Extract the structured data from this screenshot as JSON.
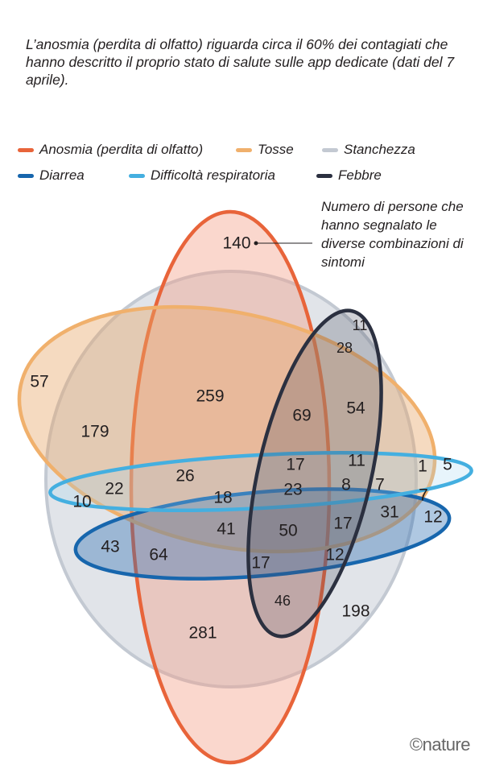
{
  "intro": "L’anosmia (perdita di olfatto) riguarda circa il 60% dei contagiati che hanno descritto il proprio stato di salute sulle app dedicate (dati del 7 aprile).",
  "legend": [
    {
      "label": "Anosmia (perdita di olfatto)",
      "color": "#e8643a"
    },
    {
      "label": "Tosse",
      "color": "#f0b06c"
    },
    {
      "label": "Stanchezza",
      "color": "#c3c9d2"
    },
    {
      "label": "Diarrea",
      "color": "#1766ad"
    },
    {
      "label": "Difficoltà respiratoria",
      "color": "#44afe0"
    },
    {
      "label": "Febbre",
      "color": "#2b3040"
    }
  ],
  "annotation": "Numero di persone che hanno segnalato le diverse combinazioni di sintomi",
  "numbers": [
    "140",
    "11",
    "28",
    "57",
    "259",
    "69",
    "54",
    "179",
    "17",
    "11",
    "1",
    "5",
    "26",
    "22",
    "18",
    "23",
    "8",
    "7",
    "7",
    "10",
    "31",
    "12",
    "41",
    "50",
    "17",
    "43",
    "64",
    "12",
    "17",
    "46",
    "198",
    "281"
  ],
  "credit": "©nature"
}
